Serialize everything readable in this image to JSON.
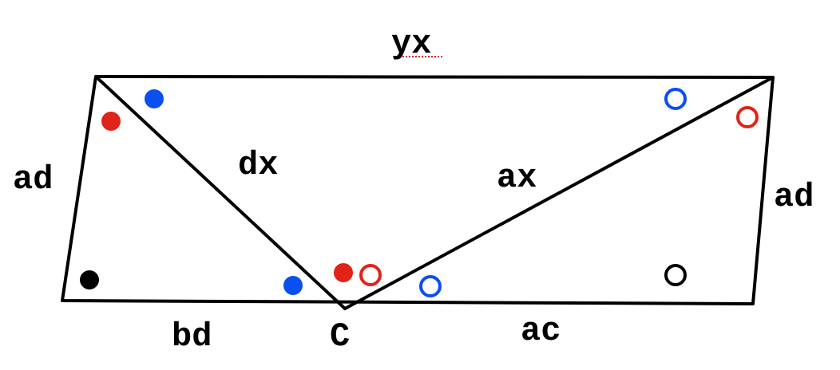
{
  "labels": {
    "top": "yx",
    "left_side": "ad",
    "right_side": "ad",
    "left_diagonal": "dx",
    "right_diagonal": "ax",
    "bottom_left": "bd",
    "bottom_right": "ac",
    "apex": "C"
  },
  "colors": {
    "line": "#000000",
    "red": "#e2231a",
    "blue": "#0a4ff0",
    "black": "#000000"
  },
  "markers": [
    {
      "name": "blue-filled-top-left",
      "color": "blue",
      "style": "filled"
    },
    {
      "name": "red-filled-top-left",
      "color": "red",
      "style": "filled"
    },
    {
      "name": "black-filled-bottom-left",
      "color": "black",
      "style": "filled"
    },
    {
      "name": "blue-filled-near-c",
      "color": "blue",
      "style": "filled"
    },
    {
      "name": "red-filled-at-c",
      "color": "red",
      "style": "filled"
    },
    {
      "name": "red-hollow-at-c",
      "color": "red",
      "style": "hollow"
    },
    {
      "name": "blue-hollow-near-c",
      "color": "blue",
      "style": "hollow"
    },
    {
      "name": "blue-hollow-top-right",
      "color": "blue",
      "style": "hollow"
    },
    {
      "name": "red-hollow-top-right",
      "color": "red",
      "style": "hollow"
    },
    {
      "name": "black-hollow-bottom-right",
      "color": "black",
      "style": "hollow"
    }
  ]
}
